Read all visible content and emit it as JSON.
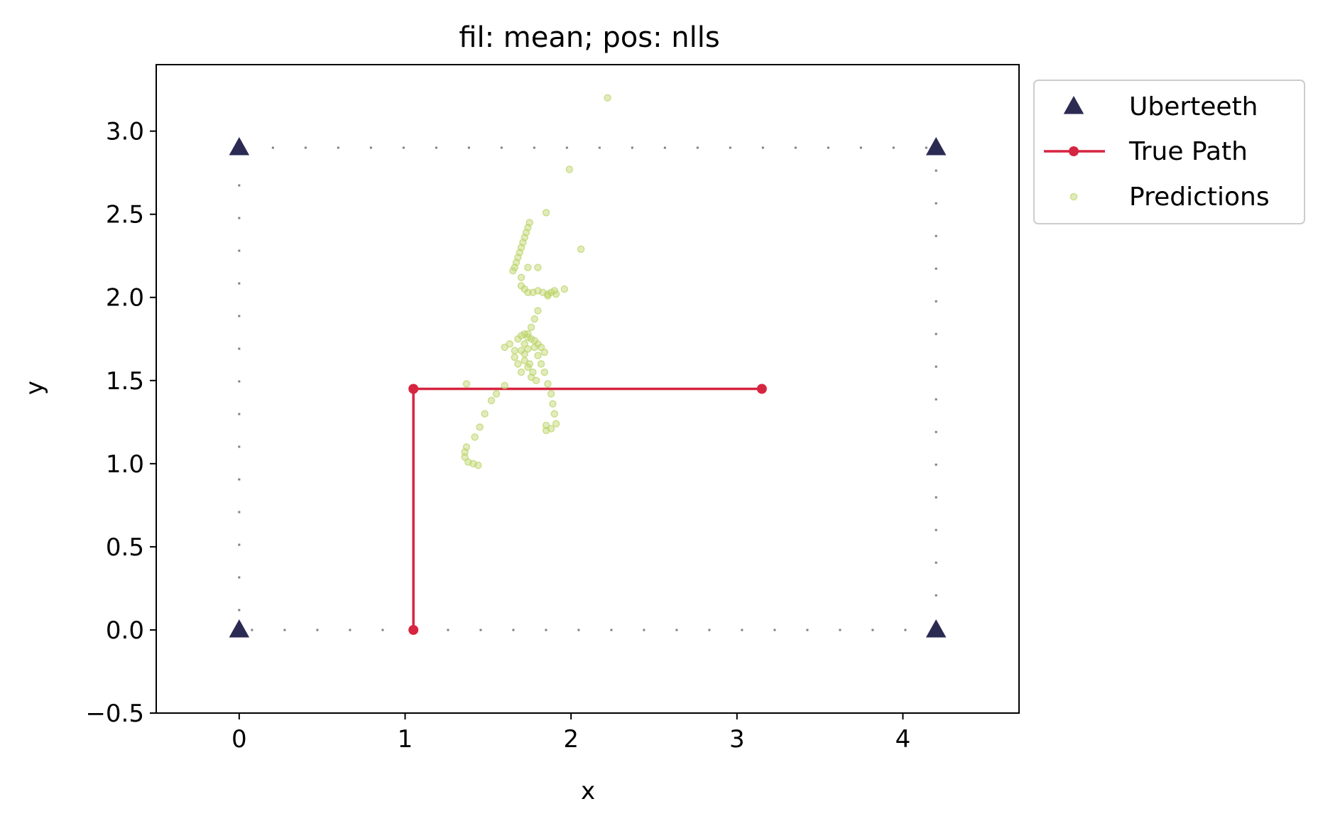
{
  "chart_data": {
    "type": "scatter",
    "title": "fil: mean; pos: nlls",
    "xlabel": "x",
    "ylabel": "y",
    "xlim": [
      -0.5,
      4.7
    ],
    "ylim": [
      -0.5,
      3.4
    ],
    "xticks": [
      0,
      1,
      2,
      3,
      4
    ],
    "xtick_labels": [
      "0",
      "1",
      "2",
      "3",
      "4"
    ],
    "yticks": [
      -0.5,
      0.0,
      0.5,
      1.0,
      1.5,
      2.0,
      2.5,
      3.0
    ],
    "ytick_labels": [
      "−0.5",
      "0.0",
      "0.5",
      "1.0",
      "1.5",
      "2.0",
      "2.5",
      "3.0"
    ],
    "grid": false,
    "legend_position": "outside top-right",
    "boundary_box": {
      "x": [
        0,
        4.2
      ],
      "y": [
        0,
        2.9
      ],
      "style": "dotted",
      "color": "#808080"
    },
    "series": [
      {
        "name": "Uberteeth",
        "kind": "marker",
        "marker": "triangle",
        "color": "#2b2a52",
        "points": [
          [
            0,
            2.9
          ],
          [
            4.2,
            2.9
          ],
          [
            0,
            0
          ],
          [
            4.2,
            0
          ]
        ]
      },
      {
        "name": "True Path",
        "kind": "line",
        "color": "#d62540",
        "points": [
          [
            1.05,
            0
          ],
          [
            1.05,
            1.45
          ],
          [
            3.15,
            1.45
          ]
        ]
      },
      {
        "name": "Predictions",
        "kind": "scatter",
        "color": "#bcd46a",
        "points": [
          [
            2.22,
            3.2
          ],
          [
            1.99,
            2.77
          ],
          [
            2.06,
            2.29
          ],
          [
            1.85,
            2.51
          ],
          [
            1.96,
            2.05
          ],
          [
            1.86,
            2.01
          ],
          [
            1.75,
            2.45
          ],
          [
            1.74,
            2.42
          ],
          [
            1.73,
            2.39
          ],
          [
            1.72,
            2.36
          ],
          [
            1.71,
            2.33
          ],
          [
            1.7,
            2.3
          ],
          [
            1.69,
            2.27
          ],
          [
            1.68,
            2.24
          ],
          [
            1.67,
            2.21
          ],
          [
            1.66,
            2.18
          ],
          [
            1.65,
            2.16
          ],
          [
            1.7,
            2.07
          ],
          [
            1.72,
            2.05
          ],
          [
            1.74,
            2.03
          ],
          [
            1.77,
            2.03
          ],
          [
            1.8,
            2.04
          ],
          [
            1.83,
            2.03
          ],
          [
            1.86,
            2.02
          ],
          [
            1.88,
            2.03
          ],
          [
            1.9,
            2.04
          ],
          [
            1.91,
            2.02
          ],
          [
            1.74,
            2.18
          ],
          [
            1.8,
            2.18
          ],
          [
            1.7,
            2.12
          ],
          [
            1.8,
            1.92
          ],
          [
            1.78,
            1.87
          ],
          [
            1.76,
            1.82
          ],
          [
            1.74,
            1.78
          ],
          [
            1.72,
            1.72
          ],
          [
            1.7,
            1.68
          ],
          [
            1.68,
            1.75
          ],
          [
            1.7,
            1.77
          ],
          [
            1.72,
            1.78
          ],
          [
            1.74,
            1.76
          ],
          [
            1.76,
            1.75
          ],
          [
            1.78,
            1.74
          ],
          [
            1.8,
            1.72
          ],
          [
            1.82,
            1.7
          ],
          [
            1.84,
            1.67
          ],
          [
            1.78,
            1.7
          ],
          [
            1.74,
            1.69
          ],
          [
            1.72,
            1.66
          ],
          [
            1.75,
            1.6
          ],
          [
            1.77,
            1.55
          ],
          [
            1.79,
            1.5
          ],
          [
            1.76,
            1.52
          ],
          [
            1.74,
            1.58
          ],
          [
            1.72,
            1.62
          ],
          [
            1.8,
            1.65
          ],
          [
            1.82,
            1.6
          ],
          [
            1.84,
            1.55
          ],
          [
            1.86,
            1.48
          ],
          [
            1.88,
            1.42
          ],
          [
            1.89,
            1.36
          ],
          [
            1.9,
            1.3
          ],
          [
            1.91,
            1.24
          ],
          [
            1.88,
            1.21
          ],
          [
            1.85,
            1.2
          ],
          [
            1.85,
            1.23
          ],
          [
            1.66,
            1.68
          ],
          [
            1.63,
            1.72
          ],
          [
            1.6,
            1.7
          ],
          [
            1.68,
            1.6
          ],
          [
            1.66,
            1.64
          ],
          [
            1.7,
            1.55
          ],
          [
            1.6,
            1.47
          ],
          [
            1.55,
            1.42
          ],
          [
            1.52,
            1.38
          ],
          [
            1.48,
            1.3
          ],
          [
            1.45,
            1.22
          ],
          [
            1.42,
            1.16
          ],
          [
            1.37,
            1.48
          ],
          [
            1.37,
            1.1
          ],
          [
            1.36,
            1.07
          ],
          [
            1.36,
            1.04
          ],
          [
            1.38,
            1.01
          ],
          [
            1.41,
            1.0
          ],
          [
            1.44,
            0.99
          ]
        ]
      }
    ]
  }
}
